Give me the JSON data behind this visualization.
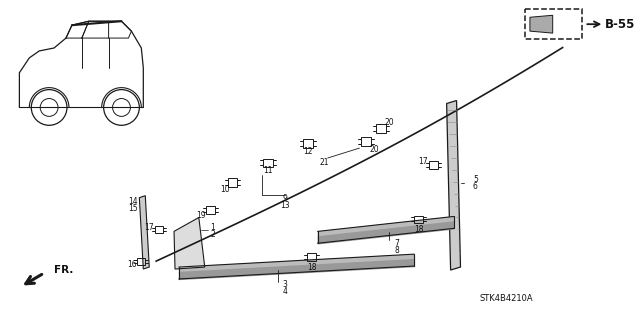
{
  "bg_color": "#ffffff",
  "ref_label": "B-55",
  "stock_number": "STK4B4210A",
  "fr_label": "FR.",
  "line_color": "#1a1a1a",
  "text_color": "#111111"
}
